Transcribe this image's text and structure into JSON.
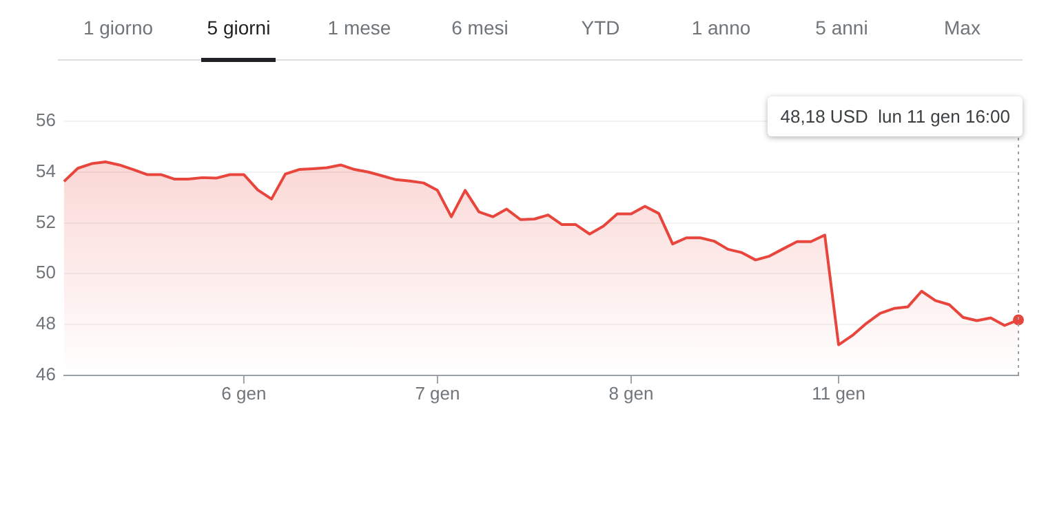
{
  "chart_data": {
    "type": "area",
    "categories": [
      null,
      null,
      null,
      null,
      null,
      null,
      null,
      null,
      null,
      null,
      null,
      null,
      null,
      "6 gen",
      null,
      null,
      null,
      null,
      null,
      null,
      null,
      null,
      null,
      null,
      null,
      null,
      null,
      "7 gen",
      null,
      null,
      null,
      null,
      null,
      null,
      null,
      null,
      null,
      null,
      null,
      null,
      null,
      "8 gen",
      null,
      null,
      null,
      null,
      null,
      null,
      null,
      null,
      null,
      null,
      null,
      null,
      null,
      null,
      "11 gen",
      null,
      null,
      null,
      null,
      null,
      null,
      null,
      null,
      null,
      null,
      null,
      null,
      null
    ],
    "series": [
      {
        "color": "#e8453c",
        "values": [
          53.63,
          54.15,
          54.33,
          54.4,
          54.28,
          54.1,
          53.9,
          53.9,
          53.72,
          53.72,
          53.78,
          53.76,
          53.9,
          53.9,
          53.3,
          52.94,
          53.92,
          54.1,
          54.13,
          54.17,
          54.28,
          54.1,
          54.0,
          53.85,
          53.7,
          53.65,
          53.57,
          53.28,
          52.24,
          53.28,
          52.43,
          52.24,
          52.54,
          52.13,
          52.15,
          52.31,
          51.93,
          51.93,
          51.56,
          51.87,
          52.35,
          52.35,
          52.65,
          52.37,
          51.17,
          51.41,
          51.41,
          51.28,
          50.96,
          50.83,
          50.54,
          50.69,
          50.98,
          51.26,
          51.26,
          51.52,
          47.2,
          47.57,
          48.04,
          48.44,
          48.63,
          48.69,
          49.31,
          48.94,
          48.78,
          48.28,
          48.15,
          48.26,
          47.96,
          48.18
        ]
      }
    ],
    "ylim": [
      46,
      56
    ],
    "yticks": [
      46,
      48,
      50,
      52,
      54,
      56
    ],
    "grid": "y",
    "annotations": [
      "1 giorno",
      "5 giorni",
      "1 mese",
      "6 mesi",
      "YTD",
      "1 anno",
      "5 anni",
      "Max",
      "48,18 USD  lun 11 gen 16:00"
    ]
  }
}
